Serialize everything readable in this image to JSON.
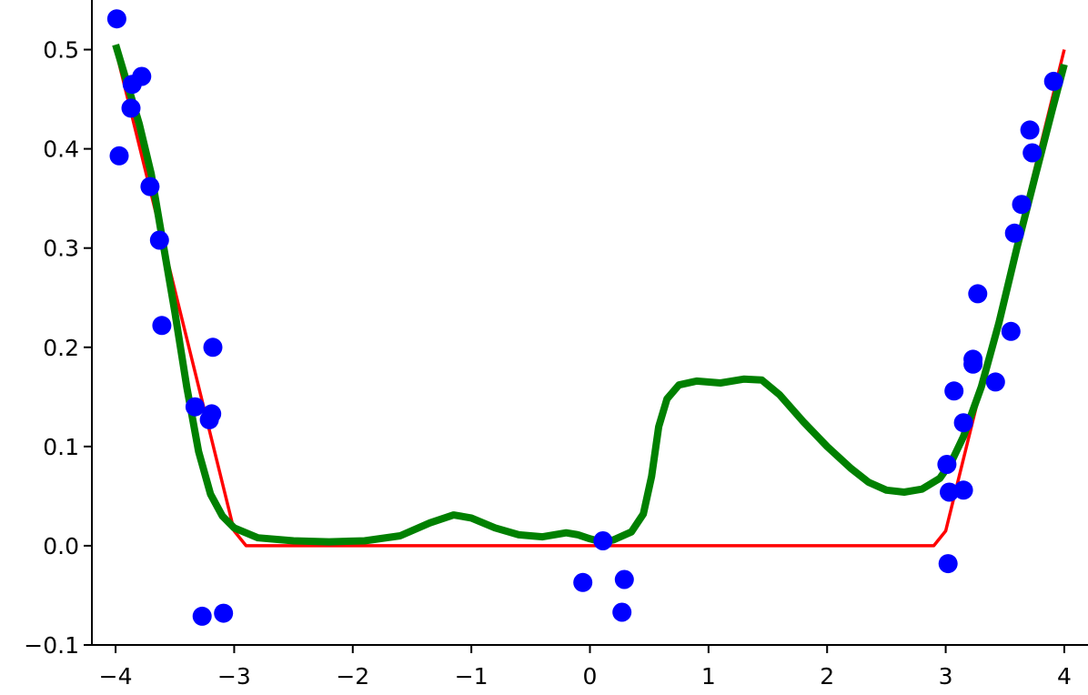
{
  "chart_data": {
    "type": "scatter",
    "title": "",
    "xlabel": "",
    "ylabel": "",
    "xlim": [
      -4.2,
      4.2
    ],
    "ylim": [
      -0.1,
      0.55
    ],
    "grid": false,
    "x_ticks": [
      -4,
      -3,
      -2,
      -1,
      0,
      1,
      2,
      3,
      4
    ],
    "x_tick_labels": [
      "−4",
      "−3",
      "−2",
      "−1",
      "0",
      "1",
      "2",
      "3",
      "4"
    ],
    "y_ticks": [
      -0.1,
      0.0,
      0.1,
      0.2,
      0.3,
      0.4,
      0.5
    ],
    "y_tick_labels": [
      "−0.1",
      "0.0",
      "0.1",
      "0.2",
      "0.3",
      "0.4",
      "0.5"
    ],
    "colors": {
      "points": "#0000ff",
      "true_function": "#ff0000",
      "fit": "#008000"
    },
    "points": [
      [
        -3.99,
        0.531
      ],
      [
        -3.97,
        0.393
      ],
      [
        -3.87,
        0.441
      ],
      [
        -3.86,
        0.465
      ],
      [
        -3.78,
        0.473
      ],
      [
        -3.71,
        0.362
      ],
      [
        -3.63,
        0.308
      ],
      [
        -3.61,
        0.222
      ],
      [
        -3.33,
        0.14
      ],
      [
        -3.27,
        -0.071
      ],
      [
        -3.21,
        0.127
      ],
      [
        -3.19,
        0.133
      ],
      [
        -3.18,
        0.2
      ],
      [
        -3.09,
        -0.068
      ],
      [
        -0.06,
        -0.037
      ],
      [
        0.11,
        0.005
      ],
      [
        0.27,
        -0.067
      ],
      [
        0.29,
        -0.034
      ],
      [
        3.01,
        0.082
      ],
      [
        3.02,
        -0.018
      ],
      [
        3.03,
        0.054
      ],
      [
        3.07,
        0.156
      ],
      [
        3.15,
        0.056
      ],
      [
        3.15,
        0.124
      ],
      [
        3.23,
        0.188
      ],
      [
        3.23,
        0.183
      ],
      [
        3.27,
        0.254
      ],
      [
        3.42,
        0.165
      ],
      [
        3.55,
        0.216
      ],
      [
        3.58,
        0.315
      ],
      [
        3.64,
        0.344
      ],
      [
        3.71,
        0.419
      ],
      [
        3.73,
        0.396
      ],
      [
        3.91,
        0.468
      ]
    ],
    "series": [
      {
        "values": [
          [
            -4.0,
            0.5
          ],
          [
            -3.0,
            0.015
          ],
          [
            -2.9,
            0.0
          ],
          [
            2.9,
            0.0
          ],
          [
            3.0,
            0.015
          ],
          [
            4.0,
            0.5
          ]
        ]
      },
      {
        "values": [
          [
            -4.0,
            0.505
          ],
          [
            -3.8,
            0.425
          ],
          [
            -3.7,
            0.375
          ],
          [
            -3.6,
            0.305
          ],
          [
            -3.5,
            0.235
          ],
          [
            -3.4,
            0.16
          ],
          [
            -3.3,
            0.095
          ],
          [
            -3.2,
            0.052
          ],
          [
            -3.1,
            0.03
          ],
          [
            -3.0,
            0.018
          ],
          [
            -2.8,
            0.008
          ],
          [
            -2.5,
            0.005
          ],
          [
            -2.2,
            0.004
          ],
          [
            -1.9,
            0.005
          ],
          [
            -1.6,
            0.01
          ],
          [
            -1.35,
            0.023
          ],
          [
            -1.15,
            0.031
          ],
          [
            -1.0,
            0.028
          ],
          [
            -0.8,
            0.018
          ],
          [
            -0.6,
            0.011
          ],
          [
            -0.4,
            0.009
          ],
          [
            -0.2,
            0.013
          ],
          [
            -0.1,
            0.011
          ],
          [
            0.0,
            0.007
          ],
          [
            0.1,
            0.004
          ],
          [
            0.2,
            0.006
          ],
          [
            0.35,
            0.014
          ],
          [
            0.45,
            0.032
          ],
          [
            0.52,
            0.07
          ],
          [
            0.58,
            0.12
          ],
          [
            0.65,
            0.148
          ],
          [
            0.75,
            0.162
          ],
          [
            0.9,
            0.166
          ],
          [
            1.1,
            0.164
          ],
          [
            1.3,
            0.168
          ],
          [
            1.45,
            0.167
          ],
          [
            1.6,
            0.152
          ],
          [
            1.8,
            0.125
          ],
          [
            2.0,
            0.1
          ],
          [
            2.2,
            0.078
          ],
          [
            2.35,
            0.064
          ],
          [
            2.5,
            0.056
          ],
          [
            2.65,
            0.054
          ],
          [
            2.8,
            0.057
          ],
          [
            2.95,
            0.068
          ],
          [
            3.05,
            0.085
          ],
          [
            3.15,
            0.11
          ],
          [
            3.3,
            0.16
          ],
          [
            3.45,
            0.225
          ],
          [
            3.6,
            0.3
          ],
          [
            3.75,
            0.37
          ],
          [
            3.9,
            0.44
          ],
          [
            4.0,
            0.485
          ]
        ]
      }
    ]
  }
}
